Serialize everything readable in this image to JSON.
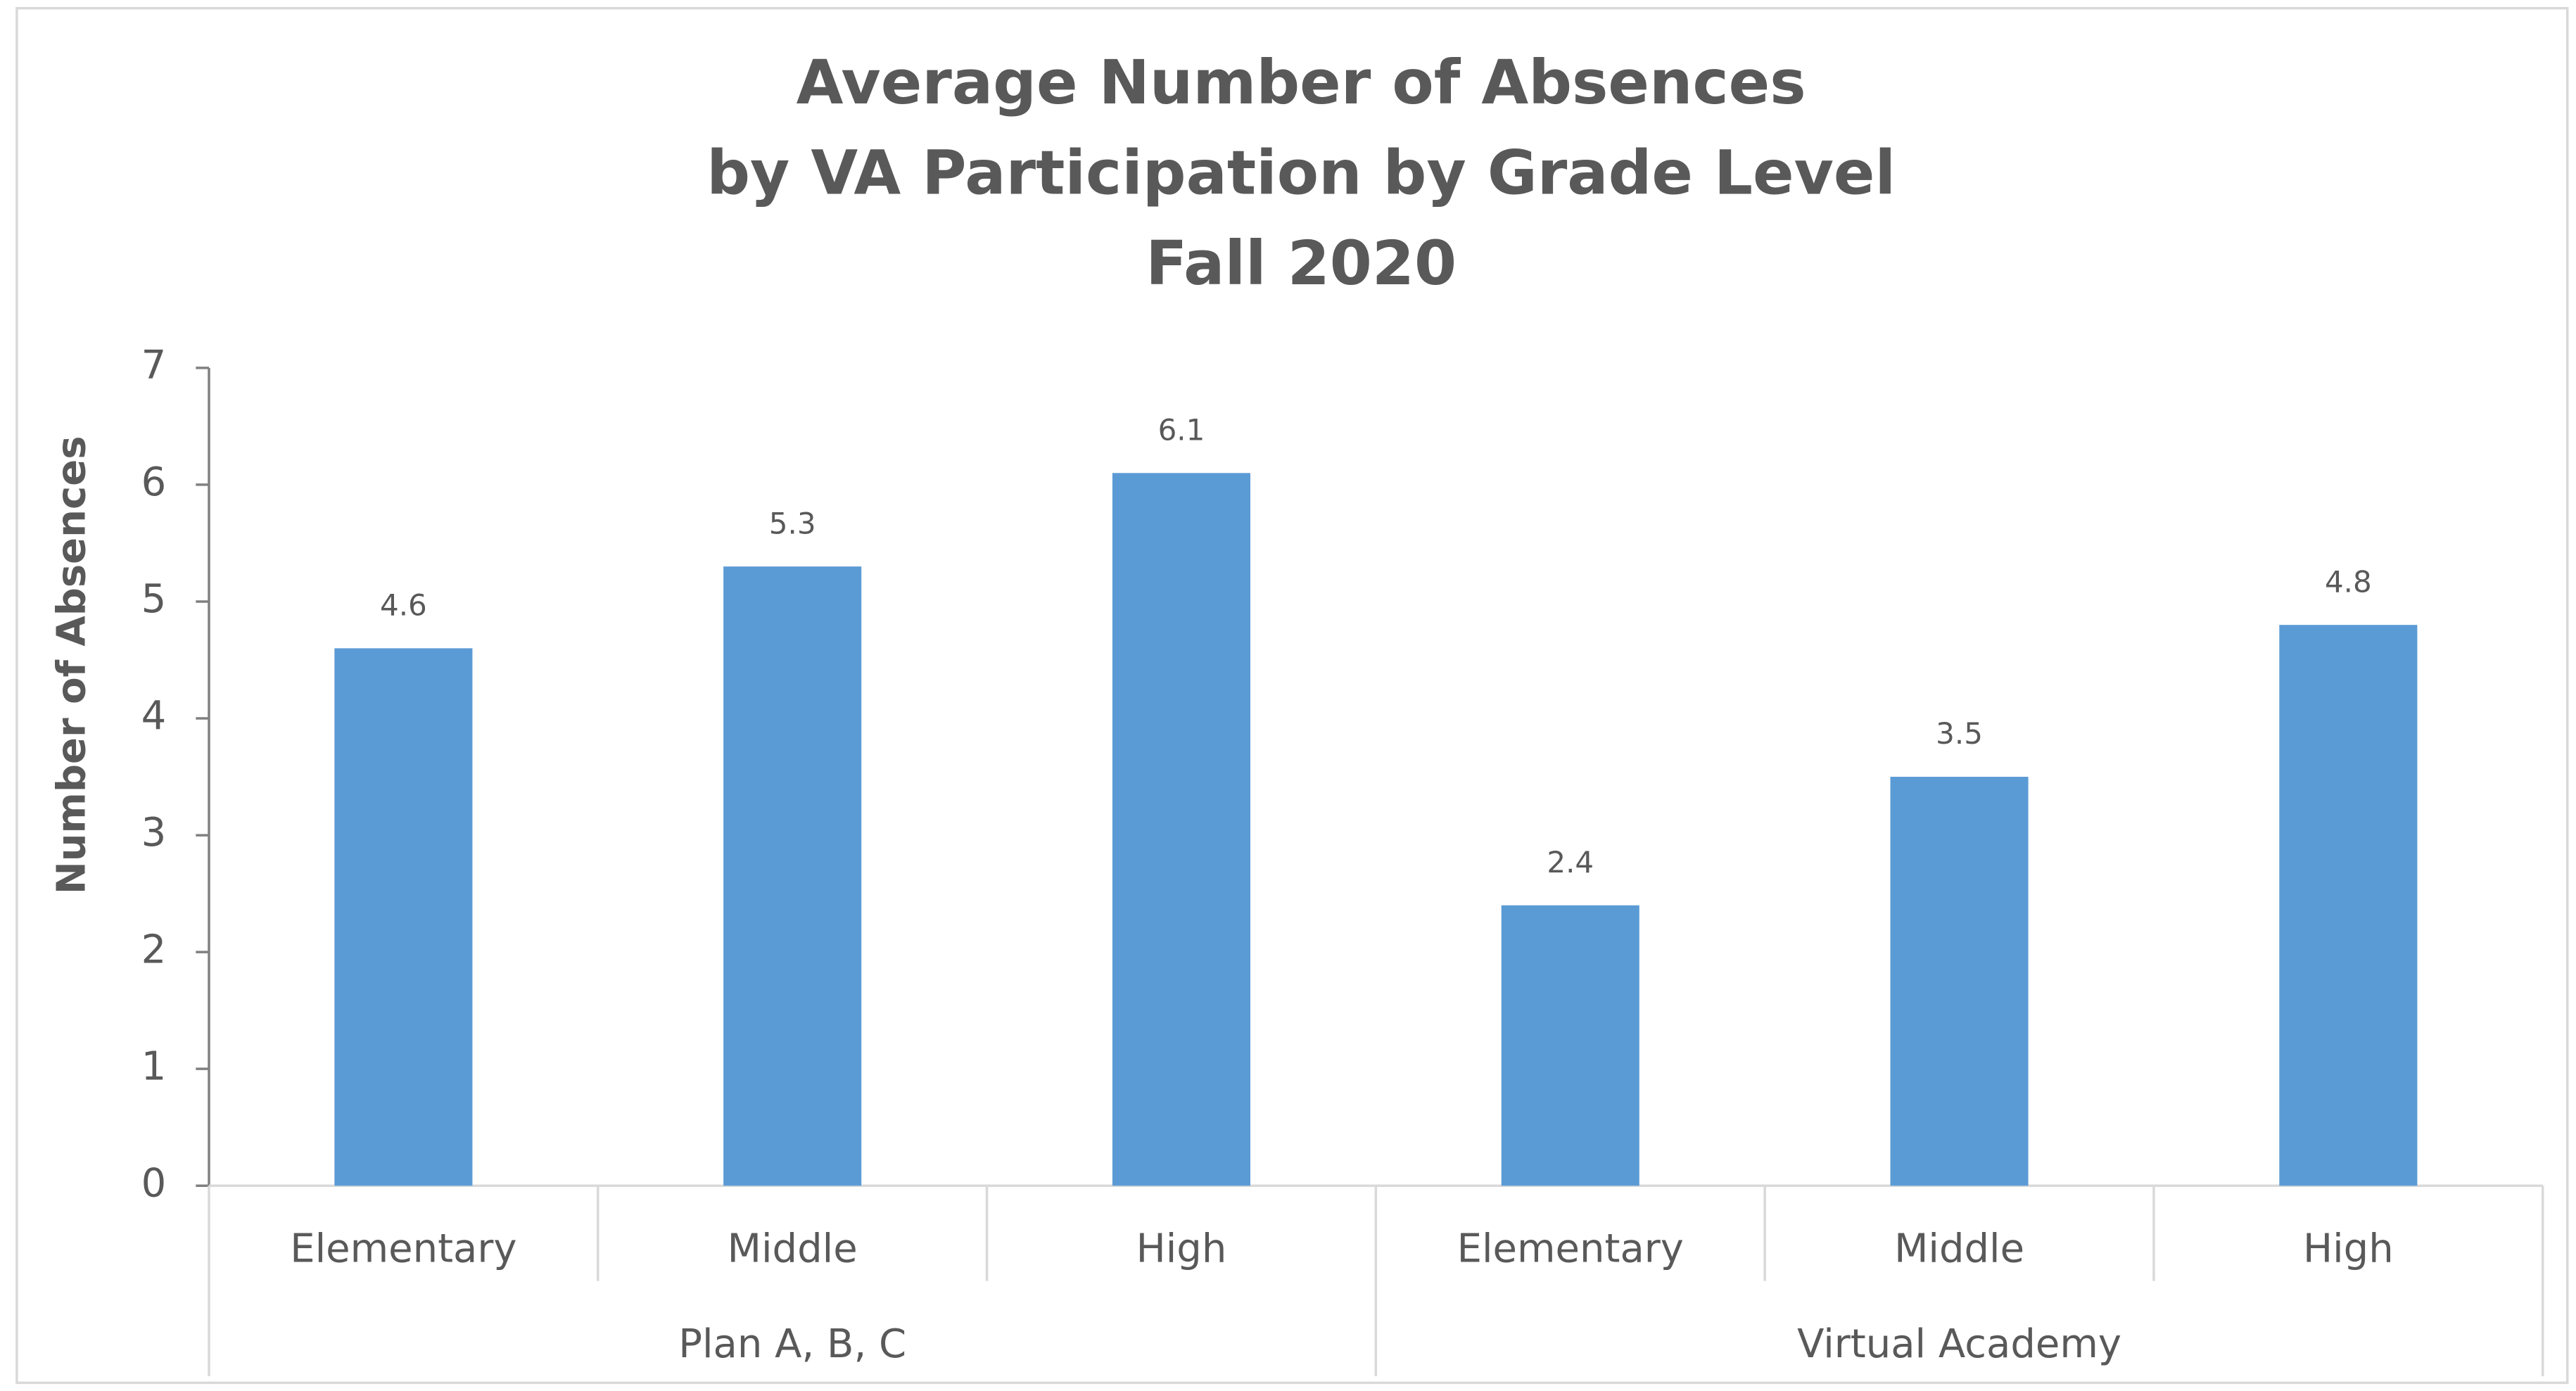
{
  "chart_data": {
    "type": "bar",
    "title": [
      "Average Number of Absences",
      "by VA Participation by Grade Level",
      "Fall 2020"
    ],
    "y_label": "Number of Absences",
    "groups": [
      {
        "name": "Plan A, B, C",
        "categories": [
          "Elementary",
          "Middle",
          "High"
        ],
        "values": [
          4.6,
          5.3,
          6.1
        ]
      },
      {
        "name": "Virtual Academy",
        "categories": [
          "Elementary",
          "Middle",
          "High"
        ],
        "values": [
          2.4,
          3.5,
          4.8
        ]
      }
    ],
    "color": "#5b9bd5",
    "ylim": [
      0,
      7
    ],
    "yticks": [
      0,
      1,
      2,
      3,
      4,
      5,
      6,
      7
    ],
    "grid": false
  }
}
